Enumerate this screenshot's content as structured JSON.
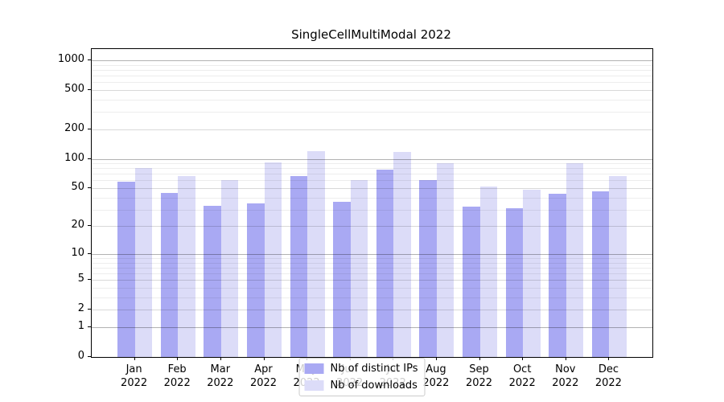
{
  "chart_data": {
    "type": "bar",
    "title": "SingleCellMultiModal 2022",
    "categories": [
      "Jan",
      "Feb",
      "Mar",
      "Apr",
      "May",
      "Jun",
      "Jul",
      "Aug",
      "Sep",
      "Oct",
      "Nov",
      "Dec"
    ],
    "category_year": "2022",
    "series": [
      {
        "name": "Nb of distinct IPs",
        "color": "#a9a9f3",
        "values": [
          58,
          45,
          33,
          35,
          67,
          36,
          78,
          61,
          32,
          31,
          44,
          46
        ]
      },
      {
        "name": "Nb of downloads",
        "color": "#dcdcf8",
        "values": [
          80,
          66,
          61,
          92,
          119,
          60,
          117,
          90,
          52,
          48,
          90,
          67
        ]
      }
    ],
    "yscale": "log1p",
    "ylim": [
      0,
      1300
    ],
    "ytick_values": [
      0,
      1,
      2,
      5,
      10,
      20,
      50,
      100,
      200,
      500,
      1000
    ],
    "ytick_labels": [
      "0",
      "1",
      "2",
      "5",
      "10",
      "20",
      "50",
      "100",
      "200",
      "500",
      "1000"
    ],
    "grid_major_values": [
      1,
      10,
      100,
      1000
    ],
    "grid_mid_values": [
      2,
      5,
      20,
      50,
      200,
      500
    ],
    "grid_minor_values": [
      3,
      4,
      6,
      7,
      8,
      9,
      30,
      40,
      60,
      70,
      80,
      90,
      300,
      400,
      600,
      700,
      800,
      900
    ],
    "grid": "horizontal major+minor, on top of bars",
    "legend_position": "lower center",
    "legend_entries": [
      "Nb of distinct IPs",
      "Nb of downloads"
    ],
    "colors": {
      "background": "#ffffff",
      "spine": "#000000",
      "grid_major": "#b3b3b3",
      "grid_mid": "#d9d9d9",
      "grid_minor": "#ededed",
      "legend_border": "#cccccc"
    }
  }
}
